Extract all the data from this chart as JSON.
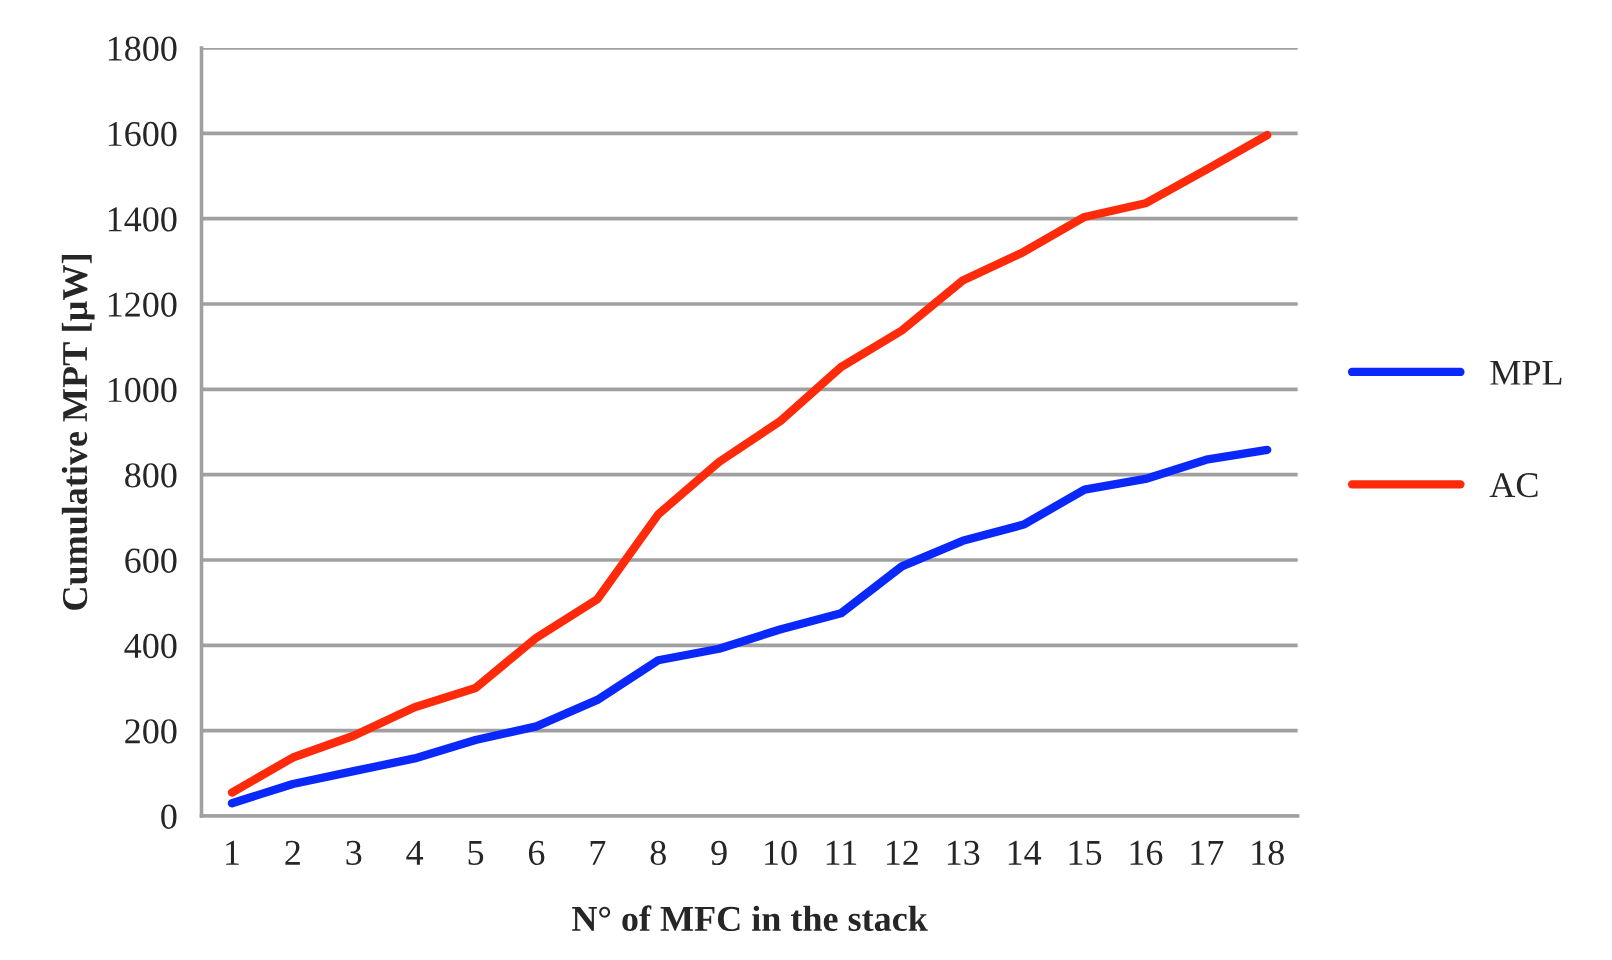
{
  "chart_data": {
    "type": "line",
    "xlabel": "N° of MFC in the stack",
    "ylabel": "Cumulative MPT [µW]",
    "categories": [
      "1",
      "2",
      "3",
      "4",
      "5",
      "6",
      "7",
      "8",
      "9",
      "10",
      "11",
      "12",
      "13",
      "14",
      "15",
      "16",
      "17",
      "18"
    ],
    "series": [
      {
        "name": "MPL",
        "color": "#0a28fa",
        "values": [
          30,
          75,
          105,
          135,
          178,
          210,
          272,
          365,
          392,
          437,
          475,
          585,
          645,
          683,
          765,
          790,
          835,
          858
        ]
      },
      {
        "name": "AC",
        "color": "#ff2a0a",
        "values": [
          55,
          137,
          188,
          255,
          300,
          418,
          508,
          707,
          830,
          925,
          1052,
          1138,
          1255,
          1322,
          1404,
          1436,
          1515,
          1596
        ]
      }
    ],
    "ylim": [
      0,
      1800
    ],
    "yticks": [
      0,
      200,
      400,
      600,
      800,
      1000,
      1200,
      1400,
      1600,
      1800
    ],
    "grid": "y",
    "legend": "right",
    "marker": "none",
    "line_style": "solid"
  }
}
